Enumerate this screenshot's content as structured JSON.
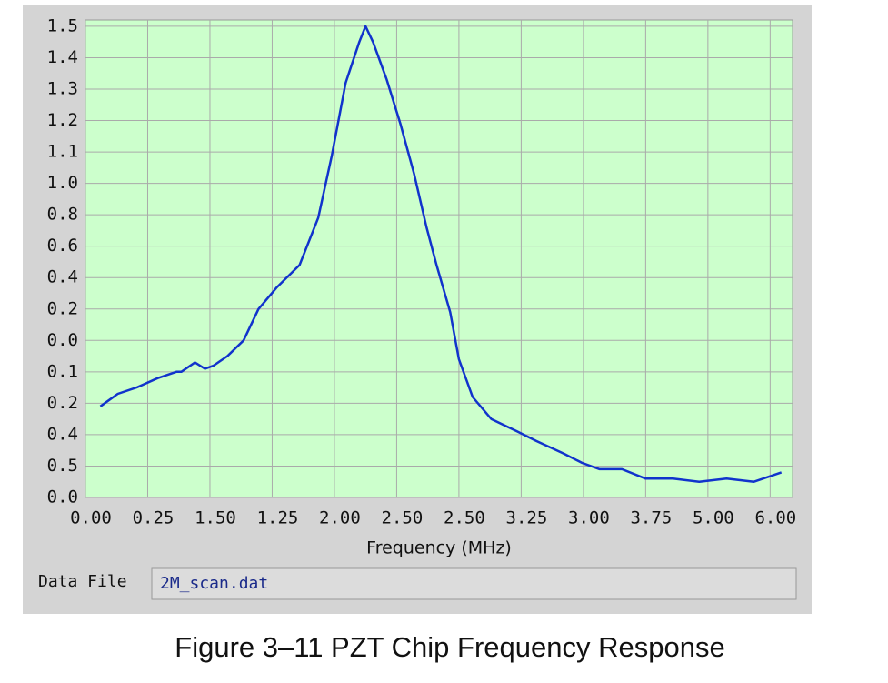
{
  "chart_data": {
    "type": "line",
    "title": "Figure 3–11  PZT Chip Frequency Response",
    "x_label": "Frequency (MHz)",
    "data_file_label": "Data File",
    "data_file": "2M_scan.dat",
    "xlim": [
      0,
      5.68
    ],
    "ylim": [
      0,
      1.52
    ],
    "xticks": [
      {
        "value": 0,
        "label": "0.00"
      },
      {
        "value": 0.5,
        "label": "0.25"
      },
      {
        "value": 1,
        "label": "1.50"
      },
      {
        "value": 1.5,
        "label": "1.25"
      },
      {
        "value": 2,
        "label": "2.00"
      },
      {
        "value": 2.5,
        "label": "2.50"
      },
      {
        "value": 3,
        "label": "2.50"
      },
      {
        "value": 3.5,
        "label": "3.25"
      },
      {
        "value": 4,
        "label": "3.00"
      },
      {
        "value": 4.5,
        "label": "3.75"
      },
      {
        "value": 5,
        "label": "5.00"
      },
      {
        "value": 5.5,
        "label": "6.00"
      }
    ],
    "yticks": [
      {
        "value": 0,
        "label": "0.0"
      },
      {
        "value": 0.1,
        "label": "0.5"
      },
      {
        "value": 0.2,
        "label": "0.4"
      },
      {
        "value": 0.3,
        "label": "0.2"
      },
      {
        "value": 0.4,
        "label": "0.1"
      },
      {
        "value": 0.5,
        "label": "0.0"
      },
      {
        "value": 0.6,
        "label": "0.2"
      },
      {
        "value": 0.7,
        "label": "0.4"
      },
      {
        "value": 0.8,
        "label": "0.6"
      },
      {
        "value": 0.9,
        "label": "0.8"
      },
      {
        "value": 1.0,
        "label": "1.0"
      },
      1.1,
      1.2,
      1.3,
      1.4,
      1.5
    ],
    "grid": true,
    "series": [
      {
        "color": "#1133cc",
        "x": [
          0.12,
          0.26,
          0.41,
          0.58,
          0.73,
          0.77,
          0.88,
          0.96,
          1.03,
          1.14,
          1.27,
          1.39,
          1.54,
          1.72,
          1.87,
          1.98,
          2.09,
          2.2,
          2.25,
          2.31,
          2.42,
          2.53,
          2.64,
          2.74,
          2.82,
          2.93,
          3.0,
          3.11,
          3.26,
          3.47,
          3.62,
          3.84,
          3.99,
          4.13,
          4.31,
          4.5,
          4.72,
          4.93,
          5.15,
          5.37,
          5.59
        ],
        "values": [
          0.29,
          0.33,
          0.35,
          0.38,
          0.4,
          0.4,
          0.43,
          0.41,
          0.42,
          0.45,
          0.5,
          0.6,
          0.67,
          0.74,
          0.89,
          1.09,
          1.32,
          1.45,
          1.5,
          1.45,
          1.33,
          1.19,
          1.03,
          0.86,
          0.74,
          0.59,
          0.44,
          0.32,
          0.25,
          0.21,
          0.18,
          0.14,
          0.11,
          0.09,
          0.09,
          0.06,
          0.06,
          0.05,
          0.06,
          0.05,
          0.08
        ]
      }
    ]
  }
}
